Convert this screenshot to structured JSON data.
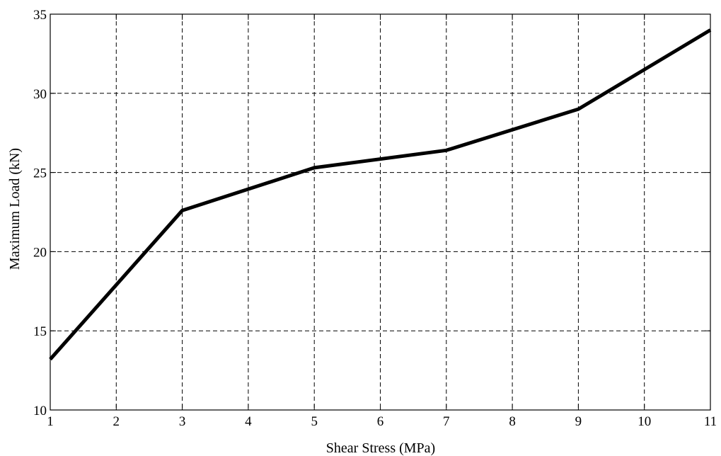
{
  "chart_data": {
    "type": "line",
    "title": "",
    "xlabel": "Shear Stress (MPa)",
    "ylabel": "Maximum Load (kN)",
    "xlim": [
      1,
      11
    ],
    "ylim": [
      10,
      35
    ],
    "xticks": [
      1,
      2,
      3,
      4,
      5,
      6,
      7,
      8,
      9,
      10,
      11
    ],
    "yticks": [
      10,
      15,
      20,
      25,
      30,
      35
    ],
    "grid": true,
    "grid_style": "dashed",
    "legend": "none",
    "series": [
      {
        "color": "#000000",
        "x": [
          1,
          3,
          5,
          7,
          9,
          11
        ],
        "y": [
          13.2,
          22.6,
          25.3,
          26.4,
          29.0,
          34.0
        ]
      }
    ]
  }
}
